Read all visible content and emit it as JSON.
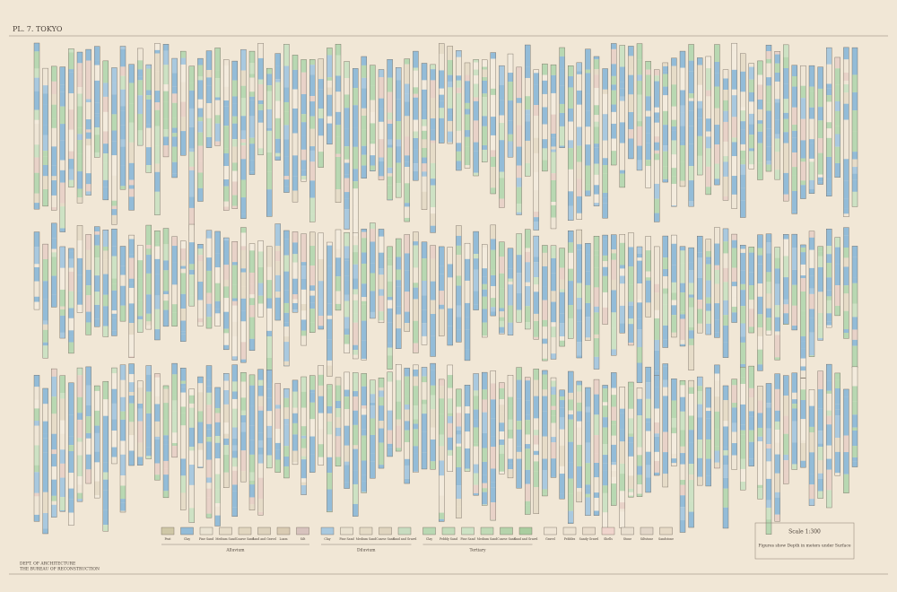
{
  "header": {
    "plate": "PL. 7. TOKYO"
  },
  "legend": {
    "groups": [
      {
        "name": "Alluvium",
        "items": [
          {
            "label": "Peat",
            "color": "#cfc7a6"
          },
          {
            "label": "Clay",
            "color": "#93bcd8"
          },
          {
            "label": "Fine Sand",
            "color": "#eae3d2"
          },
          {
            "label": "Medium Sand",
            "color": "#e6dcc8"
          },
          {
            "label": "Coarse Sand",
            "color": "#e1d6bf"
          },
          {
            "label": "Sand and Gravel",
            "color": "#ddd2bc"
          },
          {
            "label": "Loam",
            "color": "#d9cbb2"
          },
          {
            "label": "Silt",
            "color": "#d7c2bd"
          }
        ]
      },
      {
        "name": "Diluvium",
        "items": [
          {
            "label": "Clay",
            "color": "#a9c9df"
          },
          {
            "label": "Fine Sand",
            "color": "#e9e1cf"
          },
          {
            "label": "Medium Sand",
            "color": "#e4dac5"
          },
          {
            "label": "Coarse Sand",
            "color": "#dfd4be"
          },
          {
            "label": "Sand and Gravel",
            "color": "#c8dcc0"
          }
        ]
      },
      {
        "name": "Tertiary",
        "items": [
          {
            "label": "Clay",
            "color": "#b8d8b2"
          },
          {
            "label": "Pebbly Sand",
            "color": "#c3dcba"
          },
          {
            "label": "Fine Sand",
            "color": "#cde2c4"
          },
          {
            "label": "Medium Sand",
            "color": "#c0dab6"
          },
          {
            "label": "Coarse Sand",
            "color": "#b5d3ab"
          },
          {
            "label": "Sand and Gravel",
            "color": "#aacd9f"
          }
        ]
      },
      {
        "items": [
          {
            "label": "Gravel",
            "color": "#eee4d4"
          },
          {
            "label": "Pebbles",
            "color": "#ece2d1"
          },
          {
            "label": "Sandy Gravel",
            "color": "#e8dccb"
          },
          {
            "label": "Shells",
            "color": "#f0d4cc"
          },
          {
            "label": "Stone",
            "color": "#e9dfcf"
          },
          {
            "label": "Siltstone",
            "color": "#e2d6c8"
          },
          {
            "label": "Sandstone",
            "color": "#e6dac6"
          }
        ]
      }
    ]
  },
  "scale": {
    "title": "Scale 1:300",
    "note": "Figures show Depth in meters under Surface"
  },
  "credits": {
    "line1": "DEPT. OF ARCHITECTURE",
    "line2": "THE BUREAU OF RECONSTRUCTION"
  }
}
